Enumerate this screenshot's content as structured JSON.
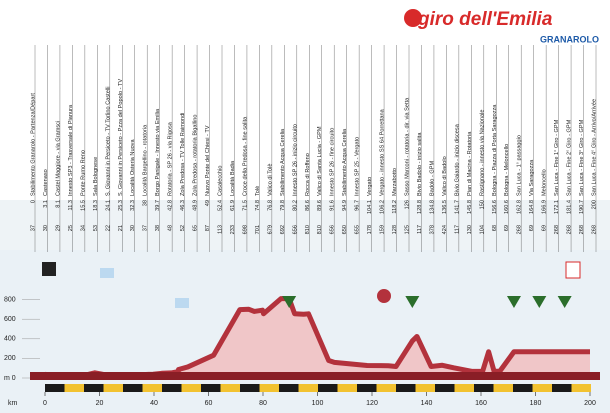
{
  "header": {
    "logo": "giro dell'Emilia",
    "sponsor": "GRANAROLO"
  },
  "chart_data": {
    "type": "area",
    "labels": [
      "Stabilimento Granarolo - Partenza/Départ",
      "Castenaso",
      "Castel Maggiore - via Gramsci",
      "Innesto SP3 - Trasversale di Pianura",
      "Ponte Rumo Reno",
      "Sala Bolognese",
      "S. Giovanni in Persiceto - TV Torlino Castelli",
      "S. Giovanni in Persiceto - Pzza del Popolo - TV",
      "Località Osteria Nuova",
      "Località Bargellino - rotatoria",
      "Borgo Panigale - Innesto via Emilia",
      "Rotatoria - SP 26 - via Rigosa",
      "Zola Predosa - TV Tolle Raimondi",
      "Zola Predosa - rotatoria Bigallino",
      "Nuovo Ponte del Chiesi - TV",
      "Casalecchio",
      "Località Badia",
      "Croce della Predosa - fine salita",
      "Tolè",
      "Valico di Tolè",
      "Stabilimento Acqua Cerelia",
      "Innesto SP 26 - inizio circuito",
      "Rocca di Roffeno",
      "Valico di Santa Lucia - GPM",
      "Innesto SP 26 - fine circuito",
      "Stabilimento Acqua Cerelia",
      "Innesto SP 25 - Vergato",
      "Vergato",
      "Vergato - innesto SS 64 Porrettana",
      "Marzabotto",
      "Sasso Marconi - rotatoria - dir. via Setta",
      "Bivio Badolo - inizio salita",
      "Badolo - GPM",
      "Valico di Badolo",
      "Bivio Gaiardo - inizio discesa",
      "Pian di Macina - Rotatoria",
      "Rastignano - innesto via Nazionale",
      "Bologna - Piazza di Porta Saragozza",
      "Bologna - Meloncello",
      "San Luca - 1° passaggio",
      "Via Saragozza",
      "Meloncello",
      "San Luca - Fine 1° Giro - GPM",
      "San Luca - Fine 2° Giro - GPM",
      "San Luca - Fine 3° Giro - GPM",
      "San Luca - Fine 4° Giro - Arrivo/Arrivée"
    ],
    "x": [
      0,
      3.1,
      8.1,
      11.3,
      15.5,
      18.3,
      24.1,
      25.3,
      32.3,
      38.0,
      39.7,
      42.8,
      46.3,
      48.9,
      49.0,
      52.4,
      61.9,
      71.5,
      74.8,
      76.8,
      79.8,
      80.2,
      86.6,
      89.6,
      91.6,
      94.9,
      96.7,
      104.1,
      106.2,
      118.2,
      126.0,
      128.8,
      134.8,
      136.5,
      141.7,
      145.8,
      150.0,
      156.6,
      160.6,
      162.8,
      164.8,
      166.9,
      172.1,
      181.4,
      190.7,
      200.0
    ],
    "values": [
      37,
      30,
      29,
      25,
      34,
      53,
      22,
      21,
      30,
      37,
      38,
      48,
      52,
      65,
      87,
      113,
      233,
      698,
      701,
      679,
      692,
      656,
      810,
      810,
      656,
      650,
      655,
      178,
      159,
      128,
      125,
      117,
      378,
      424,
      117,
      130,
      104,
      68,
      69,
      268,
      69,
      69,
      268,
      268,
      268,
      268
    ],
    "xlabel": "km",
    "xlim": [
      0,
      200
    ],
    "xticks": [
      0,
      20,
      40,
      60,
      80,
      100,
      120,
      140,
      160,
      180,
      200
    ],
    "ylim": [
      0,
      1000
    ],
    "yticks": [
      {
        "value": 0,
        "label": "m 0"
      },
      200,
      400,
      600,
      800
    ],
    "color": "#b3323c"
  }
}
